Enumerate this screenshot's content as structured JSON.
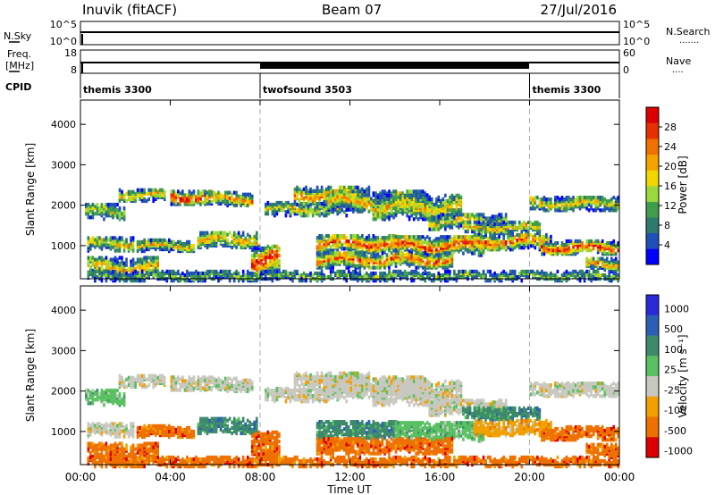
{
  "header": {
    "station": "Inuvik (fitACF)",
    "beam": "Beam 07",
    "date": "27/Jul/2016"
  },
  "panels": {
    "nsky": {
      "label": "N.Sky",
      "ticks_left": [
        "10^5",
        "10^0"
      ],
      "ticks_right": [
        "10^5",
        "10^0"
      ],
      "right_label": "N.Search",
      "right_dots": "......."
    },
    "freq": {
      "label_top": "Freq.",
      "label_bottom": "[MHz]",
      "ticks_left": [
        "18",
        "8"
      ],
      "ticks_right": [
        "60",
        "0"
      ],
      "right_label": "Nave",
      "right_dots": "...."
    },
    "cpid": {
      "label": "CPID",
      "segments": [
        {
          "label": "themis 3300",
          "start": 0,
          "end": 8
        },
        {
          "label": "twofsound 3503",
          "start": 8,
          "end": 20
        },
        {
          "label": "themis 3300",
          "start": 20,
          "end": 24
        }
      ]
    }
  },
  "chart_data": [
    {
      "type": "heatmap",
      "name": "power",
      "ylabel": "Slant Range [km]",
      "ylim": [
        180,
        4600
      ],
      "yticks": [
        "1000",
        "2000",
        "3000",
        "4000"
      ],
      "colorbar_label": "Power [dB]",
      "colorbar_ticks": [
        "4",
        "8",
        "12",
        "16",
        "20",
        "24",
        "28"
      ],
      "colorbar_range": [
        0,
        32
      ],
      "colors": [
        "#0000ff",
        "#1f4fb8",
        "#2d7a6e",
        "#3f9e4a",
        "#9ad93c",
        "#f2d600",
        "#f3a200",
        "#f07000",
        "#e63000",
        "#dd0000"
      ]
    },
    {
      "type": "heatmap",
      "name": "velocity",
      "ylabel": "Slant Range [km]",
      "ylim": [
        180,
        4600
      ],
      "yticks": [
        "1000",
        "2000",
        "3000",
        "4000"
      ],
      "colorbar_label": "Velocity [m s⁻¹]",
      "colorbar_ticks": [
        "1000",
        "500",
        "100",
        "25",
        "-25",
        "-100",
        "-500",
        "-1000"
      ],
      "colors": [
        "#2a2ad8",
        "#2b5fb5",
        "#3c8a6a",
        "#58c060",
        "#c8c8c0",
        "#f1a000",
        "#ee7000",
        "#dd0000"
      ]
    }
  ],
  "xaxis": {
    "label": "Time UT",
    "ticks": [
      "00:00",
      "04:00",
      "08:00",
      "12:00",
      "16:00",
      "20:00",
      "00:00"
    ],
    "range_hours": [
      0,
      24
    ]
  }
}
